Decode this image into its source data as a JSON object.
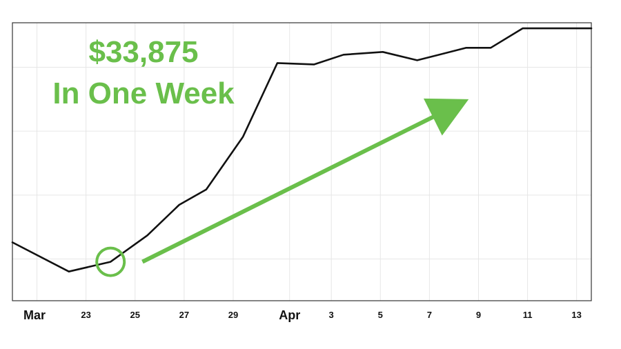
{
  "colors": {
    "line": "#111111",
    "accent": "#6abf4b",
    "grid": "#e6e6e6",
    "frame": "#333333"
  },
  "annotation": {
    "amount": "$33,875",
    "caption": "In One Week"
  },
  "chart_data": {
    "type": "line",
    "title": "",
    "xlabel": "",
    "ylabel": "",
    "grid": true,
    "x_ticks": [
      {
        "label": "Mar",
        "x": 21,
        "major": true
      },
      {
        "label": "23",
        "x": 23,
        "major": false
      },
      {
        "label": "25",
        "x": 25,
        "major": false
      },
      {
        "label": "27",
        "x": 27,
        "major": false
      },
      {
        "label": "29",
        "x": 29,
        "major": false
      },
      {
        "label": "Apr",
        "x": 31.3,
        "major": true
      },
      {
        "label": "3",
        "x": 33,
        "major": false
      },
      {
        "label": "5",
        "x": 35,
        "major": false
      },
      {
        "label": "7",
        "x": 37,
        "major": false
      },
      {
        "label": "9",
        "x": 39,
        "major": false
      },
      {
        "label": "11",
        "x": 41,
        "major": false
      },
      {
        "label": "13",
        "x": 43,
        "major": false
      }
    ],
    "xlim": [
      20,
      43.6
    ],
    "ylim": [
      0,
      100
    ],
    "y_gridlines": [
      15,
      38,
      61,
      84
    ],
    "series": [
      {
        "points": [
          [
            20,
            21
          ],
          [
            22.3,
            10.5
          ],
          [
            24,
            14
          ],
          [
            25.5,
            23.5
          ],
          [
            26.8,
            34.5
          ],
          [
            27.9,
            40
          ],
          [
            29.4,
            59
          ],
          [
            30.8,
            85.5
          ],
          [
            32.3,
            85
          ],
          [
            33.5,
            88.5
          ],
          [
            35.1,
            89.5
          ],
          [
            36.5,
            86.5
          ],
          [
            38.5,
            91
          ],
          [
            39.5,
            91
          ],
          [
            40.8,
            98
          ],
          [
            43.6,
            98
          ]
        ]
      }
    ],
    "marker": {
      "x": 24,
      "y": 14
    },
    "trend_arrow": {
      "from": [
        25.3,
        14
      ],
      "to": [
        38.6,
        72.5
      ]
    }
  }
}
